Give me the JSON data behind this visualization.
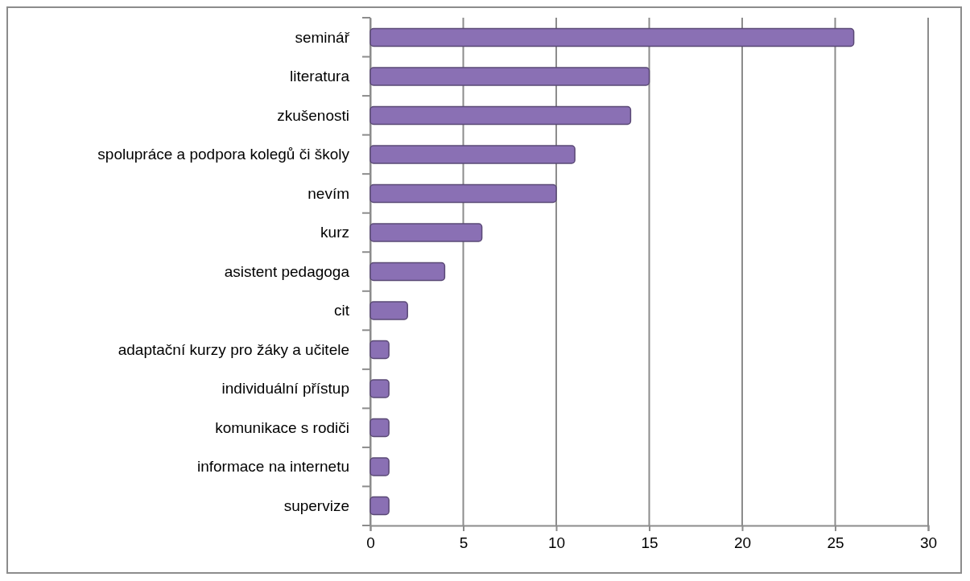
{
  "chart_data": {
    "type": "bar",
    "orientation": "horizontal",
    "categories": [
      "seminář",
      "literatura",
      "zkušenosti",
      "spolupráce a podpora kolegů či školy",
      "nevím",
      "kurz",
      "asistent pedagoga",
      "cit",
      "adaptační kurzy pro žáky a učitele",
      "individuální přístup",
      "komunikace s rodiči",
      "informace na internetu",
      "supervize"
    ],
    "values": [
      26,
      15,
      14,
      11,
      10,
      6,
      4,
      2,
      1,
      1,
      1,
      1,
      1
    ],
    "color": "#8a70b4",
    "xlim": [
      0,
      30
    ],
    "xticks": [
      0,
      5,
      10,
      15,
      20,
      25,
      30
    ],
    "grid": "x"
  }
}
